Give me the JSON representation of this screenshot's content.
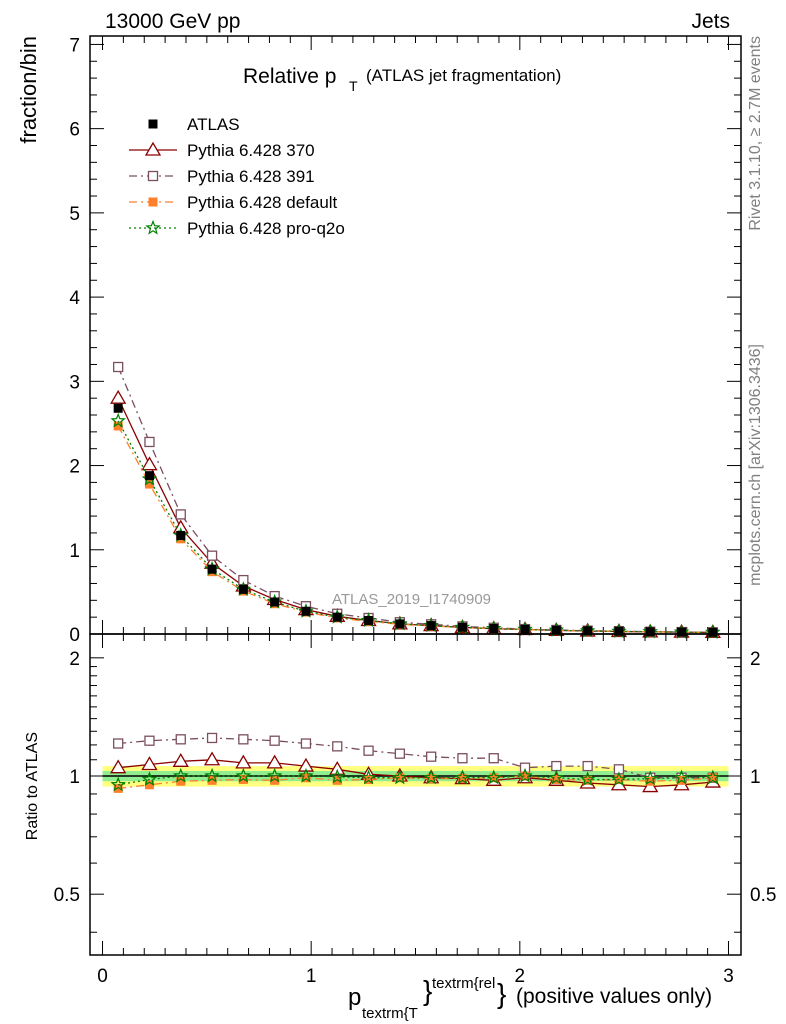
{
  "header": {
    "left": "13000 GeV pp",
    "right": "Jets"
  },
  "side_text": {
    "rivet": "Rivet 3.1.10, ≥ 2.7M events",
    "mcplots": "mcplots.cern.ch [arXiv:1306.3436]"
  },
  "analysis_label": "ATLAS_2019_I1740909",
  "chart_data": [
    {
      "type": "line",
      "panel": "main",
      "title_main": "Relative p",
      "title_sub": "T",
      "title_rest": "(ATLAS jet fragmentation)",
      "ylabel": "fraction/bin",
      "xlim": [
        -0.06,
        3.06
      ],
      "ylim": [
        0,
        7.1
      ],
      "yticks": [
        0,
        1,
        2,
        3,
        4,
        5,
        6,
        7
      ],
      "x": [
        0.075,
        0.225,
        0.375,
        0.525,
        0.675,
        0.825,
        0.975,
        1.125,
        1.275,
        1.425,
        1.575,
        1.725,
        1.875,
        2.025,
        2.175,
        2.325,
        2.475,
        2.625,
        2.775,
        2.925
      ],
      "series": [
        {
          "name": "ATLAS",
          "color": "#000000",
          "marker": "square-filled",
          "line": "none",
          "values": [
            2.68,
            1.88,
            1.17,
            0.77,
            0.53,
            0.38,
            0.27,
            0.2,
            0.16,
            0.12,
            0.1,
            0.08,
            0.065,
            0.055,
            0.045,
            0.038,
            0.032,
            0.027,
            0.023,
            0.02
          ]
        },
        {
          "name": "Pythia 6.428 370",
          "color": "#8b0000",
          "marker": "triangle-open",
          "line": "solid",
          "values": [
            2.8,
            2.01,
            1.26,
            0.84,
            0.57,
            0.41,
            0.29,
            0.21,
            0.16,
            0.12,
            0.1,
            0.078,
            0.063,
            0.053,
            0.043,
            0.036,
            0.03,
            0.025,
            0.022,
            0.019
          ]
        },
        {
          "name": "Pythia 6.428 391",
          "color": "#7b4f60",
          "marker": "square-open",
          "line": "dashdot",
          "values": [
            3.17,
            2.28,
            1.42,
            0.93,
            0.64,
            0.45,
            0.33,
            0.24,
            0.19,
            0.14,
            0.115,
            0.09,
            0.074,
            0.058,
            0.048,
            0.04,
            0.034,
            0.027,
            0.023,
            0.02
          ]
        },
        {
          "name": "Pythia 6.428 default",
          "color": "#ff7f2a",
          "marker": "square-filled",
          "line": "dashdot",
          "values": [
            2.47,
            1.78,
            1.13,
            0.74,
            0.51,
            0.36,
            0.26,
            0.19,
            0.15,
            0.115,
            0.095,
            0.077,
            0.062,
            0.053,
            0.043,
            0.036,
            0.03,
            0.026,
            0.022,
            0.019
          ]
        },
        {
          "name": "Pythia 6.428 pro-q2o",
          "color": "#008000",
          "marker": "star-open",
          "line": "dotted",
          "values": [
            2.53,
            1.84,
            1.17,
            0.77,
            0.53,
            0.38,
            0.27,
            0.2,
            0.16,
            0.12,
            0.1,
            0.078,
            0.064,
            0.054,
            0.044,
            0.037,
            0.031,
            0.026,
            0.022,
            0.019
          ]
        }
      ]
    },
    {
      "type": "line",
      "panel": "ratio",
      "ylabel": "Ratio to ATLAS",
      "xlabel_main": "p",
      "xlabel_sub": "textrm{T",
      "xlabel_sup": "textrm{rel",
      "xlabel_brace": "}",
      "xlabel_rest": "(positive values only)",
      "xlim": [
        -0.06,
        3.06
      ],
      "ylim": [
        0.35,
        2.3
      ],
      "xticks": [
        0,
        1,
        2,
        3
      ],
      "yticks": [
        0.5,
        1,
        2
      ],
      "band_inner": 0.03,
      "band_outer": 0.06,
      "x": [
        0.075,
        0.225,
        0.375,
        0.525,
        0.675,
        0.825,
        0.975,
        1.125,
        1.275,
        1.425,
        1.575,
        1.725,
        1.875,
        2.025,
        2.175,
        2.325,
        2.475,
        2.625,
        2.775,
        2.925
      ],
      "series": [
        {
          "name": "Pythia 6.428 370",
          "values": [
            1.05,
            1.07,
            1.09,
            1.1,
            1.08,
            1.08,
            1.06,
            1.04,
            1.01,
            1.0,
            0.99,
            0.985,
            0.975,
            0.99,
            0.975,
            0.96,
            0.95,
            0.94,
            0.95,
            0.965
          ]
        },
        {
          "name": "Pythia 6.428 391",
          "values": [
            1.21,
            1.23,
            1.24,
            1.25,
            1.24,
            1.23,
            1.21,
            1.19,
            1.16,
            1.14,
            1.12,
            1.11,
            1.11,
            1.05,
            1.06,
            1.06,
            1.04,
            0.99,
            0.99,
            0.99
          ]
        },
        {
          "name": "Pythia 6.428 default",
          "values": [
            0.93,
            0.95,
            0.97,
            0.975,
            0.98,
            0.975,
            0.99,
            0.975,
            0.98,
            0.99,
            0.985,
            0.985,
            0.99,
            1.0,
            0.98,
            0.975,
            0.98,
            0.97,
            0.975,
            0.99
          ]
        },
        {
          "name": "Pythia 6.428 pro-q2o",
          "values": [
            0.95,
            0.98,
            1.0,
            1.0,
            1.0,
            1.0,
            1.0,
            0.995,
            0.99,
            0.99,
            0.99,
            0.99,
            0.99,
            1.0,
            0.99,
            0.98,
            0.98,
            0.985,
            0.99,
            0.99
          ]
        }
      ]
    }
  ]
}
